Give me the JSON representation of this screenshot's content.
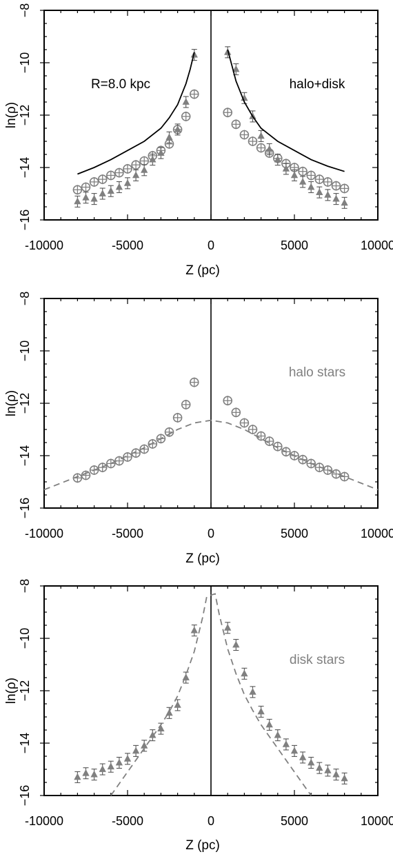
{
  "chart_data": [
    {
      "type": "scatter",
      "panel": "halo+disk",
      "xlabel": "Z (pc)",
      "ylabel": "ln(ρ)",
      "xlim": [
        -10000,
        10000
      ],
      "ylim": [
        -8,
        -16
      ],
      "x_ticks": [
        -10000,
        -5000,
        0,
        5000,
        10000
      ],
      "y_ticks": [
        -8,
        -10,
        -12,
        -14,
        -16
      ],
      "y_tick_labels": [
        "−8",
        "−10",
        "−12",
        "−14",
        "−16"
      ],
      "x_tick_labels": [
        "-10000",
        "-5000",
        "0",
        "5000",
        "10000"
      ],
      "annotations": [
        "R=8.0 kpc",
        "halo+disk"
      ],
      "series": [
        {
          "marker": "circle-plus",
          "color": "#808080",
          "x": [
            -8000,
            -7500,
            -7000,
            -6500,
            -6000,
            -5500,
            -5000,
            -4500,
            -4000,
            -3500,
            -3000,
            -2500,
            -2000,
            -1500,
            -1000,
            1000,
            1500,
            2000,
            2500,
            3000,
            3500,
            4000,
            4500,
            5000,
            5500,
            6000,
            6500,
            7000,
            7500,
            8000
          ],
          "y": [
            -14.85,
            -14.75,
            -14.55,
            -14.45,
            -14.3,
            -14.2,
            -14.05,
            -13.9,
            -13.75,
            -13.55,
            -13.35,
            -13.1,
            -12.55,
            -12.05,
            -11.2,
            -11.9,
            -12.35,
            -12.75,
            -13.0,
            -13.25,
            -13.45,
            -13.65,
            -13.85,
            -14.0,
            -14.15,
            -14.3,
            -14.45,
            -14.55,
            -14.7,
            -14.8
          ]
        },
        {
          "marker": "triangle",
          "color": "#808080",
          "x": [
            -8000,
            -7500,
            -7000,
            -6500,
            -6000,
            -5500,
            -5000,
            -4500,
            -4000,
            -3500,
            -3000,
            -2500,
            -2000,
            -1500,
            -1000,
            1000,
            1500,
            2000,
            2500,
            3000,
            3500,
            4000,
            4500,
            5000,
            5500,
            6000,
            6500,
            7000,
            7500,
            8000
          ],
          "y": [
            -15.3,
            -15.15,
            -15.2,
            -15.0,
            -14.9,
            -14.75,
            -14.6,
            -14.3,
            -14.1,
            -13.7,
            -13.45,
            -12.85,
            -12.55,
            -11.5,
            -9.7,
            -9.6,
            -10.25,
            -11.35,
            -12.05,
            -12.8,
            -13.3,
            -13.7,
            -14.05,
            -14.3,
            -14.55,
            -14.75,
            -14.95,
            -15.05,
            -15.2,
            -15.35
          ]
        },
        {
          "name": "model",
          "style": "solid",
          "color": "#000000",
          "x": [
            -8000,
            -7000,
            -6000,
            -5000,
            -4000,
            -3000,
            -2500,
            -2000,
            -1500,
            -1250,
            -1000,
            1000,
            1250,
            1500,
            2000,
            2500,
            3000,
            4000,
            5000,
            6000,
            7000,
            8000
          ],
          "y": [
            -14.25,
            -14.0,
            -13.7,
            -13.35,
            -13.0,
            -12.5,
            -12.1,
            -11.6,
            -10.8,
            -10.25,
            -9.6,
            -9.5,
            -10.1,
            -10.7,
            -11.5,
            -12.05,
            -12.5,
            -13.0,
            -13.35,
            -13.7,
            -13.95,
            -14.15
          ]
        }
      ]
    },
    {
      "type": "scatter",
      "panel": "halo stars",
      "xlabel": "Z (pc)",
      "ylabel": "ln(ρ)",
      "xlim": [
        -10000,
        10000
      ],
      "ylim": [
        -8,
        -16
      ],
      "x_ticks": [
        -10000,
        -5000,
        0,
        5000,
        10000
      ],
      "y_ticks": [
        -8,
        -10,
        -12,
        -14,
        -16
      ],
      "y_tick_labels": [
        "−8",
        "−10",
        "−12",
        "−14",
        "−16"
      ],
      "x_tick_labels": [
        "-10000",
        "-5000",
        "0",
        "5000",
        "10000"
      ],
      "annotations": [
        "halo stars"
      ],
      "series": [
        {
          "marker": "circle-plus",
          "color": "#808080",
          "x": [
            -8000,
            -7500,
            -7000,
            -6500,
            -6000,
            -5500,
            -5000,
            -4500,
            -4000,
            -3500,
            -3000,
            -2500,
            -2000,
            -1500,
            -1000,
            1000,
            1500,
            2000,
            2500,
            3000,
            3500,
            4000,
            4500,
            5000,
            5500,
            6000,
            6500,
            7000,
            7500,
            8000
          ],
          "y": [
            -14.85,
            -14.75,
            -14.55,
            -14.45,
            -14.3,
            -14.2,
            -14.05,
            -13.9,
            -13.75,
            -13.55,
            -13.35,
            -13.1,
            -12.55,
            -12.05,
            -11.2,
            -11.9,
            -12.35,
            -12.75,
            -13.0,
            -13.25,
            -13.45,
            -13.65,
            -13.85,
            -14.0,
            -14.15,
            -14.3,
            -14.45,
            -14.55,
            -14.7,
            -14.8
          ]
        },
        {
          "name": "model",
          "style": "dashed",
          "color": "#808080",
          "x": [
            -10000,
            -9000,
            -8000,
            -7000,
            -6000,
            -5000,
            -4000,
            -3000,
            -2000,
            -1000,
            0,
            1000,
            2000,
            3000,
            4000,
            5000,
            6000,
            7000,
            8000,
            9000,
            10000
          ],
          "y": [
            -15.3,
            -15.05,
            -14.8,
            -14.55,
            -14.3,
            -14.0,
            -13.7,
            -13.35,
            -13.0,
            -12.75,
            -12.65,
            -12.75,
            -13.0,
            -13.35,
            -13.7,
            -14.0,
            -14.3,
            -14.55,
            -14.8,
            -15.05,
            -15.3
          ]
        }
      ]
    },
    {
      "type": "scatter",
      "panel": "disk stars",
      "xlabel": "Z (pc)",
      "ylabel": "ln(ρ)",
      "xlim": [
        -10000,
        10000
      ],
      "ylim": [
        -8,
        -16
      ],
      "x_ticks": [
        -10000,
        -5000,
        0,
        5000,
        10000
      ],
      "y_ticks": [
        -8,
        -10,
        -12,
        -14,
        -16
      ],
      "y_tick_labels": [
        "−8",
        "−10",
        "−12",
        "−14",
        "−16"
      ],
      "x_tick_labels": [
        "-10000",
        "-5000",
        "0",
        "5000",
        "10000"
      ],
      "annotations": [
        "disk stars"
      ],
      "series": [
        {
          "marker": "triangle",
          "color": "#808080",
          "x": [
            -8000,
            -7500,
            -7000,
            -6500,
            -6000,
            -5500,
            -5000,
            -4500,
            -4000,
            -3500,
            -3000,
            -2500,
            -2000,
            -1500,
            -1000,
            1000,
            1500,
            2000,
            2500,
            3000,
            3500,
            4000,
            4500,
            5000,
            5500,
            6000,
            6500,
            7000,
            7500,
            8000
          ],
          "y": [
            -15.3,
            -15.15,
            -15.2,
            -15.0,
            -14.9,
            -14.75,
            -14.6,
            -14.3,
            -14.1,
            -13.7,
            -13.45,
            -12.85,
            -12.55,
            -11.5,
            -9.7,
            -9.6,
            -10.25,
            -11.35,
            -12.05,
            -12.8,
            -13.3,
            -13.7,
            -14.05,
            -14.3,
            -14.55,
            -14.75,
            -14.95,
            -15.05,
            -15.2,
            -15.35
          ]
        },
        {
          "name": "model",
          "style": "dashed",
          "color": "#808080",
          "x": [
            -6000,
            -5500,
            -5000,
            -4500,
            -4000,
            -3500,
            -3000,
            -2500,
            -2000,
            -1500,
            -1000,
            -500,
            -250,
            250,
            500,
            1000,
            1500,
            2000,
            2500,
            3000,
            3500,
            4000,
            4500,
            5000,
            5500,
            6000
          ],
          "y": [
            -16.0,
            -15.55,
            -15.1,
            -14.65,
            -14.2,
            -13.75,
            -13.3,
            -12.8,
            -12.2,
            -11.4,
            -10.5,
            -9.2,
            -8.4,
            -8.3,
            -9.1,
            -10.4,
            -11.35,
            -12.15,
            -12.75,
            -13.3,
            -13.75,
            -14.2,
            -14.65,
            -15.1,
            -15.55,
            -16.0
          ]
        }
      ]
    }
  ]
}
